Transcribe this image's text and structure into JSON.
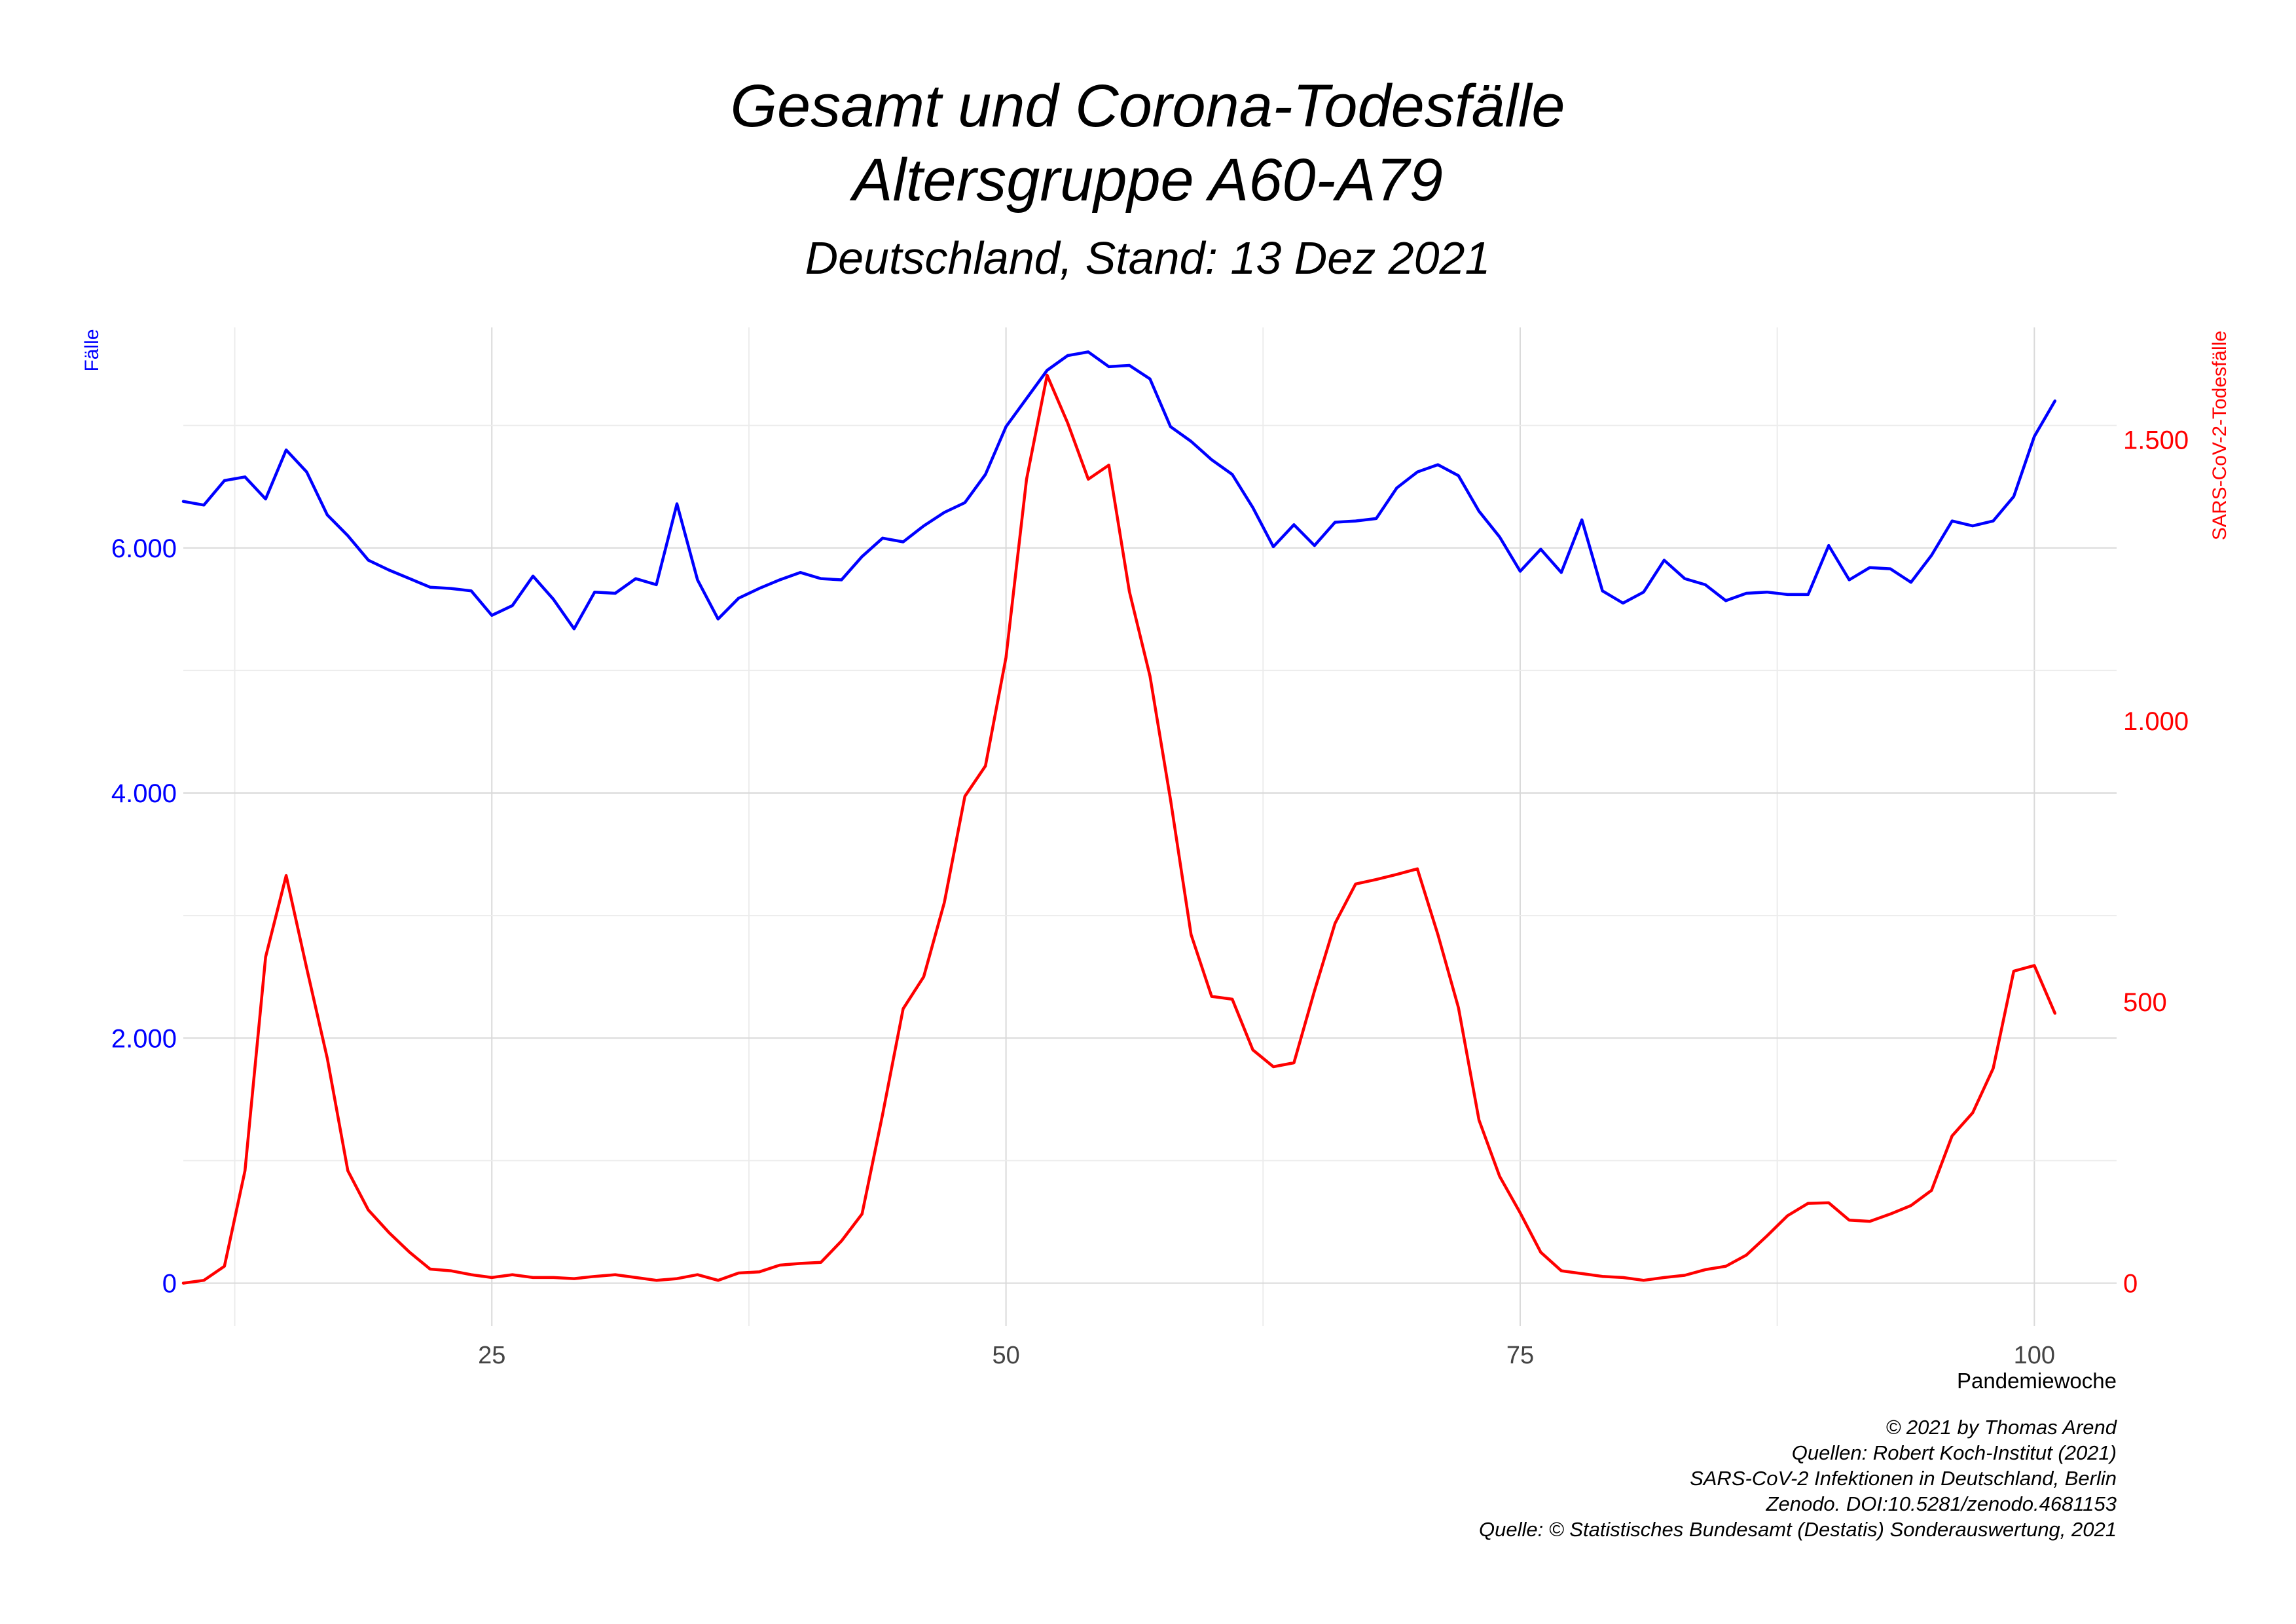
{
  "chart_data": {
    "type": "line",
    "title": "Gesamt und Corona-Todesfälle",
    "title_line2": "Altersgruppe A60-A79",
    "subtitle": "Deutschland, Stand: 13 Dez 2021",
    "xlabel": "Pandemiewoche",
    "ylabel_left": "Fälle",
    "ylabel_right": "SARS-CoV-2-Todesfälle",
    "xlim": [
      10,
      104
    ],
    "ylim_left": [
      -350,
      7800
    ],
    "ylim_right": [
      -76.3,
      1700
    ],
    "x_ticks": [
      25,
      50,
      75,
      100
    ],
    "x_tick_labels": [
      "25",
      "50",
      "75",
      "100"
    ],
    "y_left_ticks": [
      0,
      2000,
      4000,
      6000
    ],
    "y_left_tick_labels": [
      "0",
      "2.000",
      "4.000",
      "6.000"
    ],
    "y_right_ticks": [
      0,
      500,
      1000,
      1500
    ],
    "y_right_tick_labels": [
      "0",
      "500",
      "1.000",
      "1.500"
    ],
    "grid": true,
    "colors": {
      "gesamt": "#0000ff",
      "corona": "#ff0000",
      "grid": "#d9d9d9"
    },
    "series": [
      {
        "axis": "left",
        "color": "#0000ff",
        "x_start": 10,
        "values": [
          6380,
          6350,
          6550,
          6580,
          6400,
          6800,
          6620,
          6270,
          6100,
          5900,
          5820,
          5750,
          5680,
          5670,
          5650,
          5450,
          5530,
          5770,
          5580,
          5340,
          5640,
          5630,
          5750,
          5700,
          6360,
          5740,
          5420,
          5590,
          5670,
          5740,
          5800,
          5750,
          5740,
          5930,
          6080,
          6050,
          6180,
          6290,
          6370,
          6600,
          6990,
          7220,
          7450,
          7570,
          7600,
          7480,
          7490,
          7380,
          6990,
          6870,
          6720,
          6600,
          6330,
          6010,
          6190,
          6020,
          6210,
          6220,
          6240,
          6490,
          6620,
          6680,
          6590,
          6300,
          6090,
          5810,
          5990,
          5800,
          6230,
          5650,
          5550,
          5640,
          5900,
          5750,
          5700,
          5570,
          5630,
          5640,
          5620,
          5620,
          6020,
          5740,
          5840,
          5830,
          5720,
          5940,
          6220,
          6180,
          6220,
          6420,
          6910,
          7200
        ]
      },
      {
        "axis": "right",
        "color": "#ff0000",
        "x_start": 10,
        "values": [
          0,
          5,
          30,
          200,
          580,
          725,
          560,
          400,
          200,
          130,
          90,
          55,
          25,
          22,
          15,
          10,
          15,
          10,
          10,
          8,
          12,
          15,
          10,
          5,
          8,
          15,
          5,
          18,
          20,
          32,
          35,
          37,
          75,
          123,
          300,
          488,
          545,
          677,
          866,
          920,
          1113,
          1430,
          1615,
          1530,
          1430,
          1455,
          1230,
          1080,
          860,
          620,
          510,
          505,
          415,
          385,
          392,
          520,
          640,
          710,
          718,
          727,
          737,
          620,
          490,
          290,
          190,
          125,
          55,
          22,
          17,
          12,
          10,
          5,
          10,
          14,
          24,
          30,
          50,
          84,
          120,
          142,
          143,
          112,
          110,
          123,
          138,
          165,
          262,
          303,
          382,
          555,
          565,
          480
        ]
      }
    ],
    "credits": [
      "© 2021 by Thomas Arend",
      "Quellen: Robert Koch-Institut (2021)",
      "SARS-CoV-2 Infektionen in Deutschland, Berlin",
      "Zenodo. DOI:10.5281/zenodo.4681153",
      "Quelle: © Statistisches Bundesamt (Destatis) Sonderauswertung, 2021"
    ]
  }
}
